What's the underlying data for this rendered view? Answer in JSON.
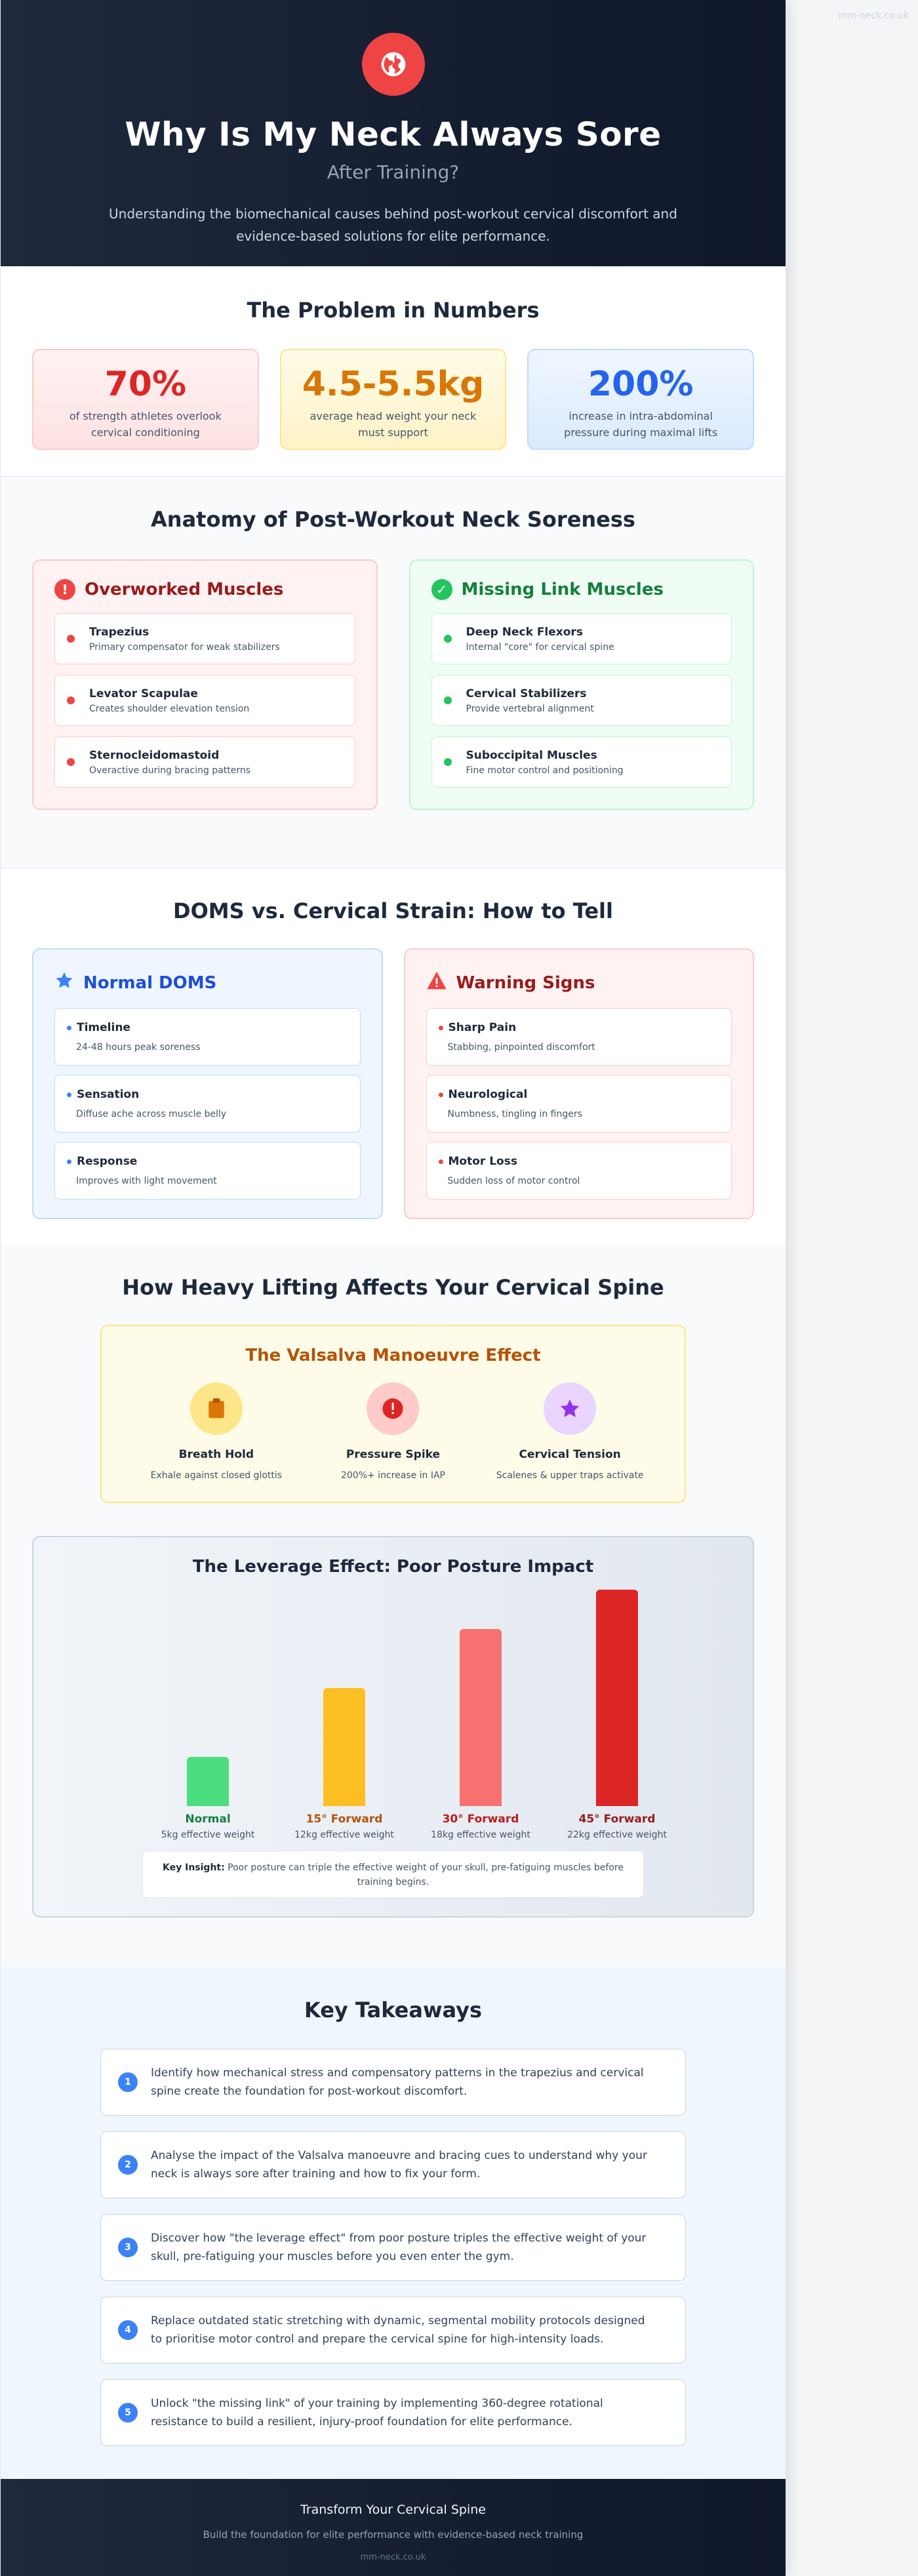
{
  "site_url": "mm-neck.co.uk",
  "hero": {
    "icon": "globe-icon",
    "title": "Why Is My Neck Always Sore",
    "subtitle": "After Training?",
    "description": "Understanding the biomechanical causes behind post-workout cervical discomfort and evidence-based solutions for elite performance."
  },
  "numbers": {
    "title": "The Problem in Numbers",
    "stats": [
      {
        "value": "70%",
        "label": "of strength athletes overlook cervical conditioning",
        "color": "#dc2626"
      },
      {
        "value": "4.5-5.5kg",
        "label": "average head weight your neck must support",
        "color": "#d97706"
      },
      {
        "value": "200%",
        "label": "increase in intra-abdominal pressure during maximal lifts",
        "color": "#2563eb"
      }
    ]
  },
  "anatomy": {
    "title": "Anatomy of Post-Workout Neck Soreness",
    "overworked": {
      "heading": "Overworked Muscles",
      "icon": "exclamation-icon",
      "items": [
        {
          "name": "Trapezius",
          "desc": "Primary compensator for weak stabilizers"
        },
        {
          "name": "Levator Scapulae",
          "desc": "Creates shoulder elevation tension"
        },
        {
          "name": "Sternocleidomastoid",
          "desc": "Overactive during bracing patterns"
        }
      ]
    },
    "missing": {
      "heading": "Missing Link Muscles",
      "icon": "check-icon",
      "items": [
        {
          "name": "Deep Neck Flexors",
          "desc": "Internal \"core\" for cervical spine"
        },
        {
          "name": "Cervical Stabilizers",
          "desc": "Provide vertebral alignment"
        },
        {
          "name": "Suboccipital Muscles",
          "desc": "Fine motor control and positioning"
        }
      ]
    }
  },
  "doms": {
    "title": "DOMS vs. Cervical Strain: How to Tell",
    "normal": {
      "heading": "Normal DOMS",
      "icon": "star-icon",
      "items": [
        {
          "name": "Timeline",
          "desc": "24-48 hours peak soreness"
        },
        {
          "name": "Sensation",
          "desc": "Diffuse ache across muscle belly"
        },
        {
          "name": "Response",
          "desc": "Improves with light movement"
        }
      ]
    },
    "warning": {
      "heading": "Warning Signs",
      "icon": "warning-triangle-icon",
      "items": [
        {
          "name": "Sharp Pain",
          "desc": "Stabbing, pinpointed discomfort"
        },
        {
          "name": "Neurological",
          "desc": "Numbness, tingling in fingers"
        },
        {
          "name": "Motor Loss",
          "desc": "Sudden loss of motor control"
        }
      ]
    }
  },
  "lifting": {
    "title": "How Heavy Lifting Affects Your Cervical Spine",
    "valsalva": {
      "title": "The Valsalva Manoeuvre Effect",
      "steps": [
        {
          "name": "Breath Hold",
          "desc": "Exhale against closed glottis",
          "icon": "clipboard-icon"
        },
        {
          "name": "Pressure Spike",
          "desc": "200%+ increase in IAP",
          "icon": "alert-icon"
        },
        {
          "name": "Cervical Tension",
          "desc": "Scalenes & upper traps activate",
          "icon": "star-icon"
        }
      ]
    }
  },
  "chart_data": {
    "type": "bar",
    "title": "The Leverage Effect: Poor Posture Impact",
    "categories": [
      "Normal",
      "15° Forward",
      "30° Forward",
      "45° Forward"
    ],
    "category_sublabels": [
      "5kg effective weight",
      "12kg effective weight",
      "18kg effective weight",
      "22kg effective weight"
    ],
    "values": [
      5,
      12,
      18,
      22
    ],
    "colors": [
      "#4ade80",
      "#fbbf24",
      "#f87171",
      "#dc2626"
    ],
    "label_colors": [
      "#15803d",
      "#b45309",
      "#b91c1c",
      "#991b1b"
    ],
    "unit": "kg",
    "ylim": [
      0,
      22
    ],
    "grid": false,
    "insight_label": "Key Insight:",
    "insight_text": "Poor posture can triple the effective weight of your skull, pre-fatiguing muscles before training begins."
  },
  "takeaways": {
    "title": "Key Takeaways",
    "items": [
      {
        "num": "1",
        "text": "Identify how mechanical stress and compensatory patterns in the trapezius and cervical spine create the foundation for post-workout discomfort."
      },
      {
        "num": "2",
        "text": "Analyse the impact of the Valsalva manoeuvre and bracing cues to understand why your neck is always sore after training and how to fix your form."
      },
      {
        "num": "3",
        "text": "Discover how \"the leverage effect\" from poor posture triples the effective weight of your skull, pre-fatiguing your muscles before you even enter the gym."
      },
      {
        "num": "4",
        "text": "Replace outdated static stretching with dynamic, segmental mobility protocols designed to prioritise motor control and prepare the cervical spine for high-intensity loads."
      },
      {
        "num": "5",
        "text": "Unlock \"the missing link\" of your training by implementing 360-degree rotational resistance to build a resilient, injury-proof foundation for elite performance."
      }
    ]
  },
  "footer": {
    "title": "Transform Your Cervical Spine",
    "subtitle": "Build the foundation for elite performance with evidence-based neck training",
    "url": "mm-neck.co.uk"
  }
}
